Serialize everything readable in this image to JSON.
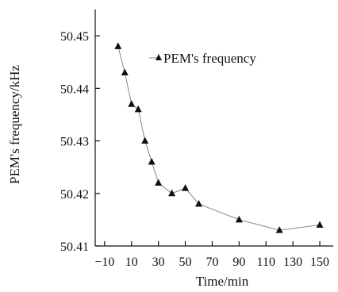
{
  "chart_data": {
    "type": "line",
    "title": "",
    "xlabel": "Time/min",
    "ylabel": "PEM's frequency/kHz",
    "xlim": [
      -17,
      160
    ],
    "ylim": [
      50.41,
      50.455
    ],
    "xticks": [
      -10,
      10,
      30,
      50,
      70,
      90,
      110,
      130,
      150
    ],
    "xtick_labels": [
      "−10",
      "10",
      "30",
      "50",
      "70",
      "90",
      "110",
      "130",
      "150"
    ],
    "yticks": [
      50.41,
      50.42,
      50.43,
      50.44,
      50.45
    ],
    "ytick_labels": [
      "50.41",
      "50.42",
      "50.43",
      "50.44",
      "50.45"
    ],
    "grid": false,
    "legend_position": "top-right",
    "series": [
      {
        "name": "PEM's frequency",
        "marker": "triangle",
        "color": "#111111",
        "x": [
          0,
          5,
          10,
          15,
          20,
          25,
          30,
          40,
          50,
          60,
          90,
          120,
          150
        ],
        "y": [
          50.448,
          50.443,
          50.437,
          50.436,
          50.43,
          50.426,
          50.422,
          50.42,
          50.421,
          50.418,
          50.415,
          50.413,
          50.414
        ]
      }
    ]
  }
}
